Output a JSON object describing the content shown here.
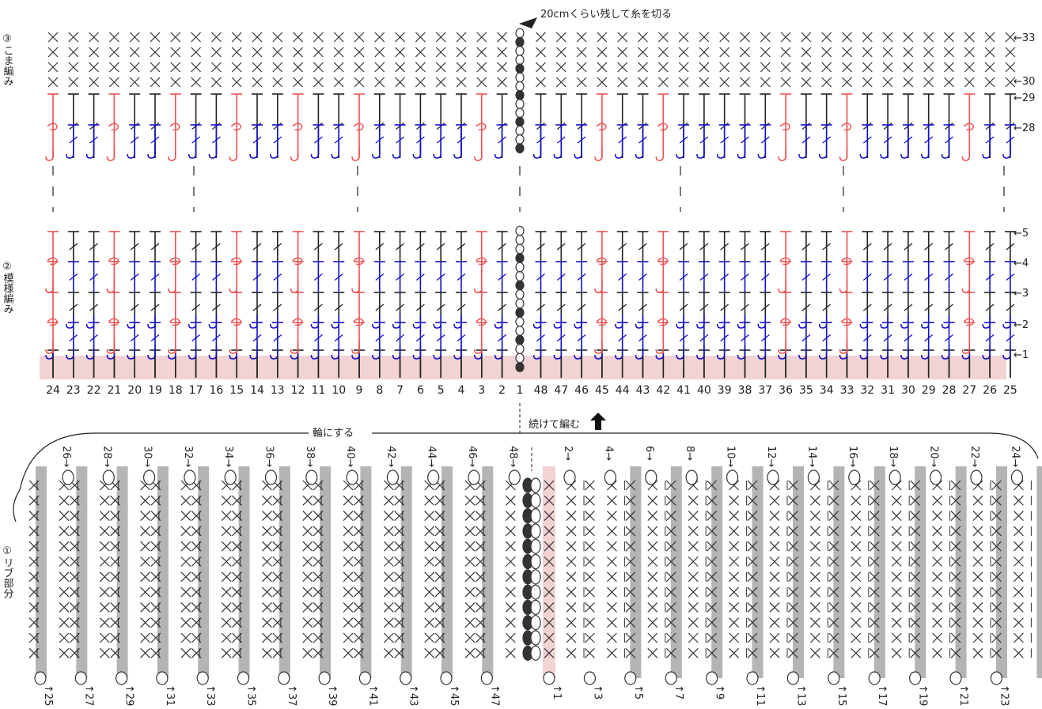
{
  "annotations": {
    "cut": "20cmくらい残して糸を切る",
    "continue": "続けて編む",
    "ring": "輪にする"
  },
  "sections": {
    "top": "③こま編み",
    "middle": "②模様編み",
    "bottom": "①リブ部分"
  },
  "row_labels": {
    "r33": "←33",
    "r30": "←30",
    "r29": "←29",
    "r28": "←28",
    "r5": "←5",
    "r4": "←4",
    "r3": "←3",
    "r2": "←2",
    "r1": "←1"
  },
  "stitch_numbers": [
    24,
    23,
    22,
    21,
    20,
    19,
    18,
    17,
    16,
    15,
    14,
    13,
    12,
    11,
    10,
    9,
    8,
    7,
    6,
    5,
    4,
    3,
    2,
    1,
    48,
    47,
    46,
    45,
    44,
    43,
    42,
    41,
    40,
    39,
    38,
    37,
    36,
    35,
    34,
    33,
    32,
    31,
    30,
    29,
    28,
    27,
    26,
    25
  ],
  "rib_top_left": [
    "26",
    "28",
    "30",
    "32",
    "34",
    "36",
    "38",
    "40",
    "42",
    "44",
    "46",
    "48"
  ],
  "rib_top_right": [
    "2",
    "4",
    "6",
    "8",
    "10",
    "12",
    "14",
    "16",
    "18",
    "20",
    "22",
    "24"
  ],
  "rib_bottom_left": [
    "25",
    "27",
    "29",
    "31",
    "33",
    "35",
    "37",
    "39",
    "41",
    "43",
    "45",
    "47"
  ],
  "rib_bottom_right": [
    "1",
    "3",
    "5",
    "7",
    "9",
    "11",
    "13",
    "15",
    "17",
    "19",
    "21",
    "23"
  ],
  "colors": {
    "red": "#f05050",
    "blue": "#1010c8",
    "black": "#222222",
    "pink": "#f3d2d4",
    "gray": "#b4b4b4"
  }
}
